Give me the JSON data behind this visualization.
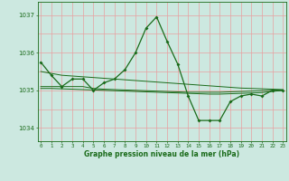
{
  "title": "Graphe pression niveau de la mer (hPa)",
  "bg_color": "#cce8e0",
  "line_color": "#1a6b1a",
  "grid_color_v": "#e8a0a0",
  "grid_color_h": "#e8a0a0",
  "x_ticks": [
    0,
    1,
    2,
    3,
    4,
    5,
    6,
    7,
    8,
    9,
    10,
    11,
    12,
    13,
    14,
    15,
    16,
    17,
    18,
    19,
    20,
    21,
    22,
    23
  ],
  "y_ticks": [
    1034,
    1035,
    1036,
    1037
  ],
  "ylim": [
    1033.65,
    1037.35
  ],
  "xlim": [
    -0.3,
    23.3
  ],
  "main_series": [
    1035.75,
    1035.4,
    1035.1,
    1035.3,
    1035.3,
    1035.0,
    1035.2,
    1035.3,
    1035.55,
    1036.0,
    1036.65,
    1036.95,
    1036.3,
    1035.7,
    1034.85,
    1034.2,
    1034.2,
    1034.2,
    1034.7,
    1034.85,
    1034.9,
    1034.85,
    1035.0,
    1035.0
  ],
  "line2": [
    1035.1,
    1035.1,
    1035.1,
    1035.1,
    1035.1,
    1035.05,
    1035.03,
    1035.02,
    1035.01,
    1035.0,
    1034.99,
    1034.98,
    1034.97,
    1034.96,
    1034.95,
    1034.95,
    1034.95,
    1034.95,
    1034.96,
    1034.97,
    1034.98,
    1034.99,
    1035.0,
    1035.0
  ],
  "line3": [
    1035.05,
    1035.05,
    1035.04,
    1035.03,
    1035.02,
    1035.01,
    1035.0,
    1034.99,
    1034.98,
    1034.97,
    1034.96,
    1034.95,
    1034.94,
    1034.93,
    1034.92,
    1034.91,
    1034.9,
    1034.9,
    1034.91,
    1034.92,
    1034.93,
    1034.94,
    1034.97,
    1035.0
  ],
  "line4": [
    1035.5,
    1035.45,
    1035.4,
    1035.38,
    1035.36,
    1035.34,
    1035.32,
    1035.3,
    1035.28,
    1035.26,
    1035.24,
    1035.22,
    1035.2,
    1035.18,
    1035.16,
    1035.14,
    1035.12,
    1035.1,
    1035.08,
    1035.06,
    1035.05,
    1035.04,
    1035.03,
    1035.02
  ]
}
